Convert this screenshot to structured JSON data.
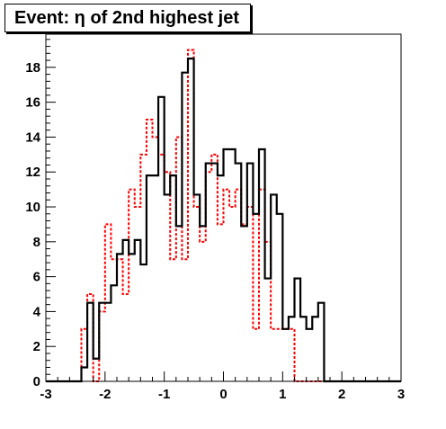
{
  "chart_data": {
    "type": "histogram",
    "title": "Event: η of 2nd highest jet",
    "xlabel": "",
    "ylabel": "",
    "xlim": [
      -3,
      3
    ],
    "ylim": [
      0,
      19.9
    ],
    "x_ticks": [
      -3,
      -2,
      -1,
      0,
      1,
      2,
      3
    ],
    "y_ticks": [
      0,
      2,
      4,
      6,
      8,
      10,
      12,
      14,
      16,
      18
    ],
    "bin_edges": [
      -3.0,
      -2.9,
      -2.8,
      -2.7,
      -2.6,
      -2.5,
      -2.4,
      -2.3,
      -2.2,
      -2.1,
      -2.0,
      -1.9,
      -1.8,
      -1.7,
      -1.6,
      -1.5,
      -1.4,
      -1.3,
      -1.2,
      -1.1,
      -1.0,
      -0.9,
      -0.8,
      -0.7,
      -0.6,
      -0.5,
      -0.4,
      -0.3,
      -0.2,
      -0.1,
      0.0,
      0.1,
      0.2,
      0.3,
      0.4,
      0.5,
      0.6,
      0.7,
      0.8,
      0.9,
      1.0,
      1.1,
      1.2,
      1.3,
      1.4,
      1.5,
      1.6,
      1.7,
      1.8,
      1.9,
      2.0,
      2.1,
      2.2,
      2.3,
      2.4,
      2.5,
      2.6,
      2.7,
      2.8,
      2.9,
      3.0
    ],
    "series": [
      {
        "name": "",
        "color": "#000000",
        "style": "solid",
        "values": [
          0,
          0,
          0,
          0,
          0,
          0,
          0.8,
          4.5,
          1.3,
          4.5,
          4.5,
          5.5,
          7.3,
          8.1,
          7.3,
          8.1,
          6.7,
          11.8,
          11.8,
          16.3,
          10.7,
          11.8,
          8.9,
          17.7,
          18.5,
          10.7,
          8.9,
          12.5,
          12.5,
          11.8,
          13.3,
          13.3,
          12.5,
          8.9,
          12.5,
          9.6,
          13.3,
          5.9,
          10.7,
          9.6,
          3.0,
          3.7,
          5.9,
          3.7,
          3.0,
          3.7,
          4.5,
          0,
          0,
          0,
          0,
          0,
          0,
          0,
          0,
          0,
          0,
          0,
          0,
          0
        ]
      },
      {
        "name": "",
        "color": "#ff0000",
        "style": "dashed",
        "values": [
          0,
          0,
          0,
          0,
          0,
          0,
          3.0,
          5.0,
          0,
          4.0,
          9.0,
          7.0,
          7.0,
          5.0,
          11.0,
          10.0,
          13.0,
          15.0,
          14.0,
          13.0,
          12.0,
          7.0,
          14.0,
          7.0,
          19.0,
          10.0,
          8.0,
          12.0,
          13.0,
          9.0,
          11.0,
          10.0,
          11.0,
          9.0,
          10.0,
          3.0,
          11.0,
          8.0,
          3.0,
          3.0,
          3.0,
          3.0,
          0,
          0,
          0,
          0,
          0,
          0,
          0,
          0,
          0,
          0,
          0,
          0,
          0,
          0,
          0,
          0,
          0,
          0
        ]
      }
    ]
  }
}
